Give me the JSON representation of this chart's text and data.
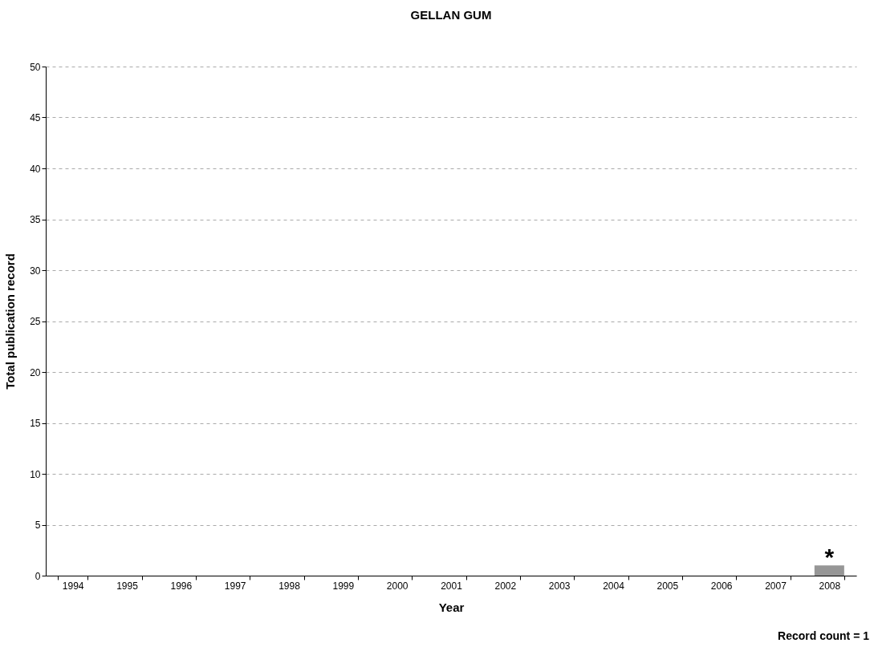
{
  "chart_data": {
    "type": "bar",
    "title": "GELLAN GUM",
    "xlabel": "Year",
    "ylabel": "Total publication record",
    "categories": [
      "1994",
      "1995",
      "1996",
      "1997",
      "1998",
      "1999",
      "2000",
      "2001",
      "2002",
      "2003",
      "2004",
      "2005",
      "2006",
      "2007",
      "2008"
    ],
    "values": [
      0,
      0,
      0,
      0,
      0,
      0,
      0,
      0,
      0,
      0,
      0,
      0,
      0,
      0,
      1
    ],
    "color": "#969696",
    "ylim": [
      0,
      50
    ],
    "yticks": [
      0,
      5,
      10,
      15,
      20,
      25,
      30,
      35,
      40,
      45,
      50
    ],
    "grid": "y",
    "annotations": [
      {
        "text": "*",
        "x": "2008",
        "y": 1
      },
      "Record count = 1"
    ]
  }
}
